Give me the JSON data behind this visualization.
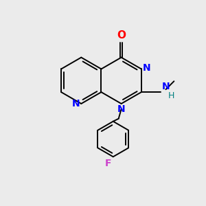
{
  "background_color": "#ebebeb",
  "bond_color": "#000000",
  "atom_colors": {
    "O": "#ff0000",
    "N": "#0000ff",
    "F": "#cc44cc",
    "N_teal": "#008080",
    "C": "#000000"
  },
  "font_size_atoms": 10,
  "font_size_small": 9,
  "figsize": [
    3.0,
    3.0
  ],
  "dpi": 100
}
